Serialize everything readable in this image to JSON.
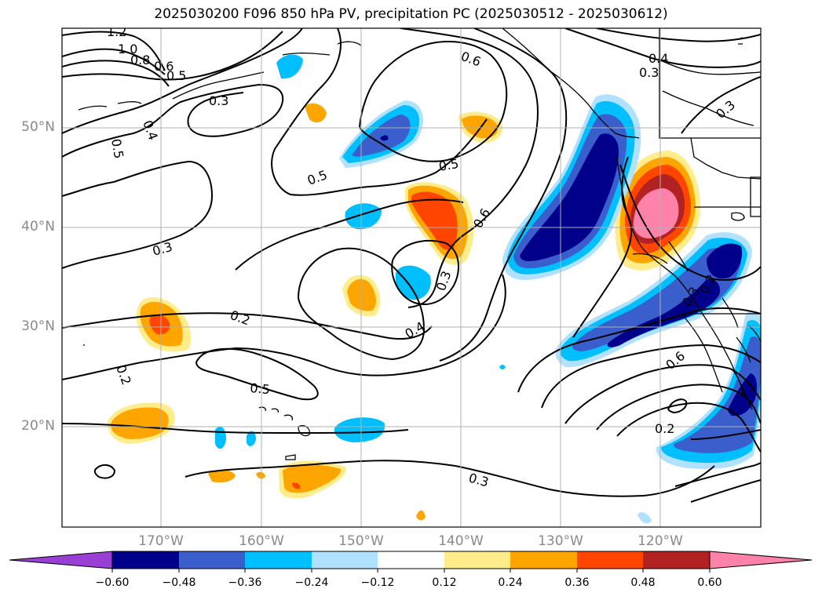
{
  "title": "2025030200 F096 850 hPa PV, precipitation PC (2025030512 - 2025030612)",
  "lat_labels": [
    "50°N",
    "40°N",
    "30°N",
    "20°N"
  ],
  "lon_labels": [
    "170°W",
    "160°W",
    "150°W",
    "140°W",
    "130°W",
    "120°W"
  ],
  "colorbar": {
    "ticks": [
      "−0.60",
      "−0.48",
      "−0.36",
      "−0.24",
      "−0.12",
      "0.12",
      "0.24",
      "0.36",
      "0.48",
      "0.60"
    ],
    "colors": [
      "#9a3fd5",
      "#00008b",
      "#3a5fcd",
      "#00bfff",
      "#b0e2ff",
      "#ffffff",
      "#ffec8b",
      "#ffa500",
      "#ff4500",
      "#b22222",
      "#ff82ab"
    ]
  },
  "contour_labels": [
    "1.2",
    "1.0",
    "0.8",
    "0.6",
    "0.5",
    "0.3",
    "0.4",
    "0.5",
    "0.5",
    "0.6",
    "0.5",
    "0.4",
    "0.3",
    "0.3",
    "0.6",
    "0.3",
    "0.3",
    "0.4",
    "0.2",
    "0.2",
    "0.5",
    "0.6",
    "0.2",
    "0.3",
    "0.3",
    "0.2"
  ],
  "colors": {
    "purple": "#9a3fd5",
    "navy": "#00008b",
    "blue": "#3a5fcd",
    "deepsky": "#00bfff",
    "lightblue": "#b0e2ff",
    "yellow": "#ffec8b",
    "orange": "#ffa500",
    "redorange": "#ff4500",
    "firebrick": "#b22222",
    "pink": "#ff82ab"
  }
}
